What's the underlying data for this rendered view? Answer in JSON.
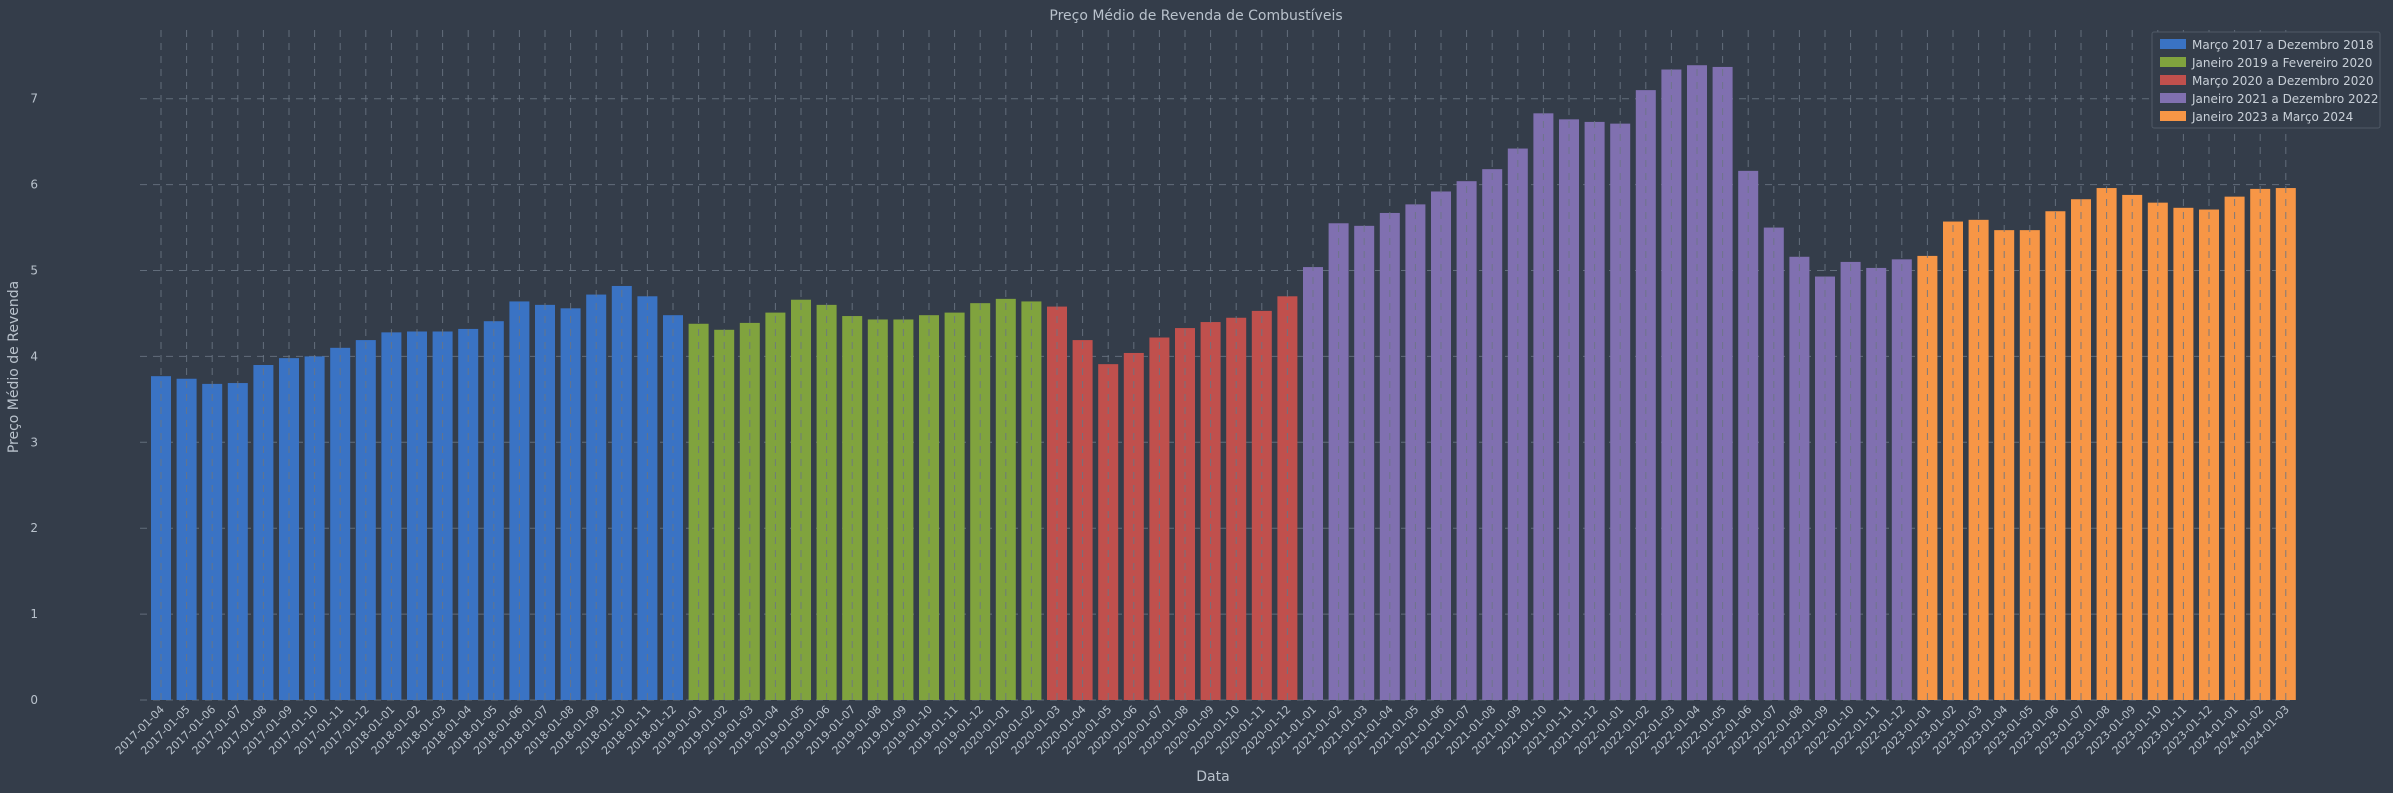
{
  "chart_data": {
    "type": "bar",
    "title": "Preço Médio de Revenda de Combustíveis",
    "xlabel": "Data",
    "ylabel": "Preço Médio de Revenda",
    "ylim": [
      0,
      7.8
    ],
    "yticks": [
      0,
      1,
      2,
      3,
      4,
      5,
      6,
      7
    ],
    "grid": true,
    "legend_position": "top-right",
    "series": [
      {
        "name": "Março 2017 a Dezembro 2018",
        "color": "#3a73c4",
        "categories": [
          "2017-01-04",
          "2017-01-05",
          "2017-01-06",
          "2017-01-07",
          "2017-01-08",
          "2017-01-09",
          "2017-01-10",
          "2017-01-11",
          "2017-01-12",
          "2018-01-01",
          "2018-01-02",
          "2018-01-03",
          "2018-01-04",
          "2018-01-05",
          "2018-01-06",
          "2018-01-07",
          "2018-01-08",
          "2018-01-09",
          "2018-01-10",
          "2018-01-11",
          "2018-01-12"
        ],
        "values": [
          3.77,
          3.74,
          3.68,
          3.69,
          3.9,
          3.98,
          4.0,
          4.1,
          4.19,
          4.28,
          4.29,
          4.29,
          4.32,
          4.41,
          4.64,
          4.6,
          4.56,
          4.72,
          4.82,
          4.7,
          4.48
        ]
      },
      {
        "name": "Janeiro 2019 a Fevereiro 2020",
        "color": "#80a33e",
        "categories": [
          "2019-01-01",
          "2019-01-02",
          "2019-01-03",
          "2019-01-04",
          "2019-01-05",
          "2019-01-06",
          "2019-01-07",
          "2019-01-08",
          "2019-01-09",
          "2019-01-10",
          "2019-01-11",
          "2019-01-12",
          "2020-01-01",
          "2020-01-02"
        ],
        "values": [
          4.38,
          4.31,
          4.39,
          4.51,
          4.66,
          4.6,
          4.47,
          4.43,
          4.43,
          4.48,
          4.51,
          4.62,
          4.67,
          4.64
        ]
      },
      {
        "name": "Março 2020 a Dezembro 2020",
        "color": "#c0504d",
        "categories": [
          "2020-01-03",
          "2020-01-04",
          "2020-01-05",
          "2020-01-06",
          "2020-01-07",
          "2020-01-08",
          "2020-01-09",
          "2020-01-10",
          "2020-01-11",
          "2020-01-12"
        ],
        "values": [
          4.58,
          4.19,
          3.91,
          4.04,
          4.22,
          4.33,
          4.4,
          4.45,
          4.53,
          4.7
        ]
      },
      {
        "name": "Janeiro 2021 a Dezembro 2022",
        "color": "#8070b0",
        "categories": [
          "2021-01-01",
          "2021-01-02",
          "2021-01-03",
          "2021-01-04",
          "2021-01-05",
          "2021-01-06",
          "2021-01-07",
          "2021-01-08",
          "2021-01-09",
          "2021-01-10",
          "2021-01-11",
          "2021-01-12",
          "2022-01-01",
          "2022-01-02",
          "2022-01-03",
          "2022-01-04",
          "2022-01-05",
          "2022-01-06",
          "2022-01-07",
          "2022-01-08",
          "2022-01-09",
          "2022-01-10",
          "2022-01-11",
          "2022-01-12"
        ],
        "values": [
          5.04,
          5.55,
          5.52,
          5.67,
          5.77,
          5.92,
          6.04,
          6.18,
          6.42,
          6.83,
          6.76,
          6.73,
          6.71,
          7.1,
          7.34,
          7.39,
          7.37,
          6.16,
          5.5,
          5.16,
          4.93,
          5.1,
          5.03,
          5.13
        ]
      },
      {
        "name": "Janeiro 2023 a Março 2024",
        "color": "#f79646",
        "categories": [
          "2023-01-01",
          "2023-01-02",
          "2023-01-03",
          "2023-01-04",
          "2023-01-05",
          "2023-01-06",
          "2023-01-07",
          "2023-01-08",
          "2023-01-09",
          "2023-01-10",
          "2023-01-11",
          "2023-01-12",
          "2024-01-01",
          "2024-01-02",
          "2024-01-03"
        ],
        "values": [
          5.17,
          5.57,
          5.59,
          5.47,
          5.47,
          5.69,
          5.83,
          5.96,
          5.88,
          5.79,
          5.73,
          5.71,
          5.86,
          5.95,
          5.96
        ]
      }
    ]
  }
}
